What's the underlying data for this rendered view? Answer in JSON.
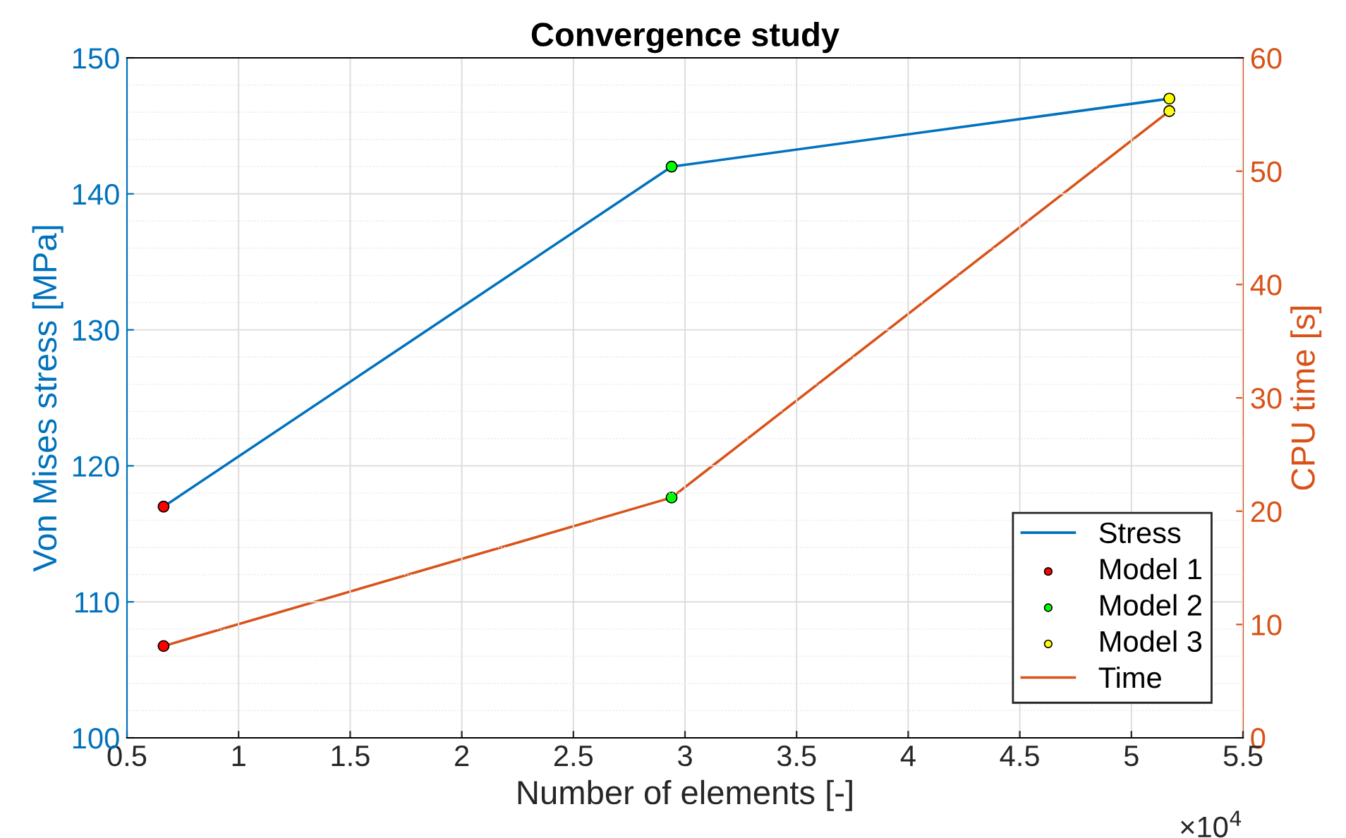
{
  "chart_data": {
    "type": "line",
    "title": "Convergence study",
    "xlabel": "Number of elements [-]",
    "ylabel": "Von Mises stress [MPa]",
    "y2label": "CPU time [s]",
    "xlim": [
      0.5,
      5.5
    ],
    "xticks": [
      0.5,
      1,
      1.5,
      2,
      2.5,
      3,
      3.5,
      4,
      4.5,
      5,
      5.5
    ],
    "ylim": [
      100,
      150
    ],
    "yticks": [
      100,
      110,
      120,
      130,
      140,
      150
    ],
    "y2lim": [
      0,
      60
    ],
    "y2ticks": [
      0,
      10,
      20,
      30,
      40,
      50,
      60
    ],
    "grid": true,
    "legend": "bottom right",
    "annotations": [
      "×10$^{4}$"
    ],
    "series": [
      {
        "name": "Stress",
        "color": "#0072bd",
        "axis": "y",
        "marker": "none",
        "x": [
          0.664,
          2.94,
          5.17
        ],
        "values": [
          117,
          142,
          147
        ]
      },
      {
        "name": "Model 1",
        "type": "scatter",
        "color": "#ff0000",
        "axis": "y",
        "marker": "circle",
        "x": [
          0.664
        ],
        "values": [
          117
        ]
      },
      {
        "name": "Model 2",
        "type": "scatter",
        "color": "#00ff00",
        "axis": "y",
        "marker": "circle",
        "x": [
          2.94
        ],
        "values": [
          142
        ]
      },
      {
        "name": "Model 3",
        "type": "scatter",
        "color": "#ffff00",
        "axis": "y",
        "marker": "circle",
        "x": [
          5.17
        ],
        "values": [
          147
        ]
      },
      {
        "name": "Time",
        "color": "#d95319",
        "axis": "y2",
        "marker": "none",
        "x": [
          0.664,
          2.94,
          5.17
        ],
        "values": [
          8.1,
          21.2,
          55.3
        ]
      },
      {
        "type": "scatter",
        "color": "#ff0000",
        "axis": "y2",
        "marker": "circle",
        "x": [
          0.664
        ],
        "values": [
          8.1
        ]
      },
      {
        "type": "scatter",
        "color": "#00ff00",
        "axis": "y2",
        "marker": "circle",
        "x": [
          2.94
        ],
        "values": [
          21.2
        ]
      },
      {
        "type": "scatter",
        "color": "#ffff00",
        "axis": "y2",
        "marker": "circle",
        "x": [
          5.17
        ],
        "values": [
          55.3
        ]
      }
    ]
  }
}
